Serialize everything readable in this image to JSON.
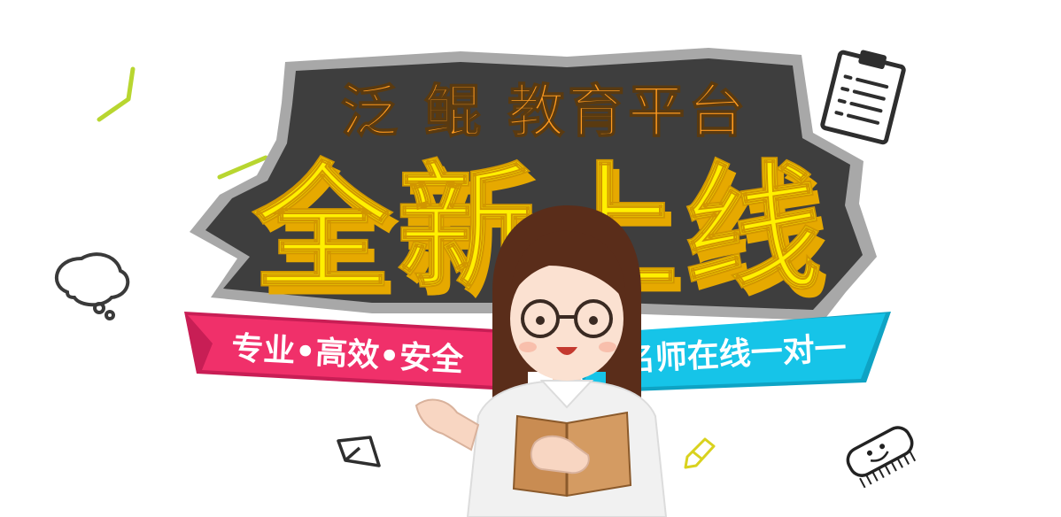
{
  "banner": {
    "platform_title": "泛 鲲 教育平台",
    "headline": "全新上线",
    "left_ribbon_text": "专业•高效•安全",
    "right_ribbon_text": "名师在线一对一"
  },
  "colors": {
    "badge_dark": "#3e3e3e",
    "badge_outline": "#a8a8a8",
    "title_orange": "#ff9a1f",
    "headline_yellow": "#fff000",
    "headline_shadow": "#e6a900",
    "ribbon_pink": "#f0306a",
    "ribbon_blue": "#16c4e8",
    "doodle_lime": "#b8d630",
    "teacher_hair": "#5a2d1a",
    "book_brown": "#c98c52"
  },
  "icons": [
    "clipboard-icon",
    "speech-bubble-icon",
    "paper-plane-icon",
    "pencil-icon",
    "scrub-brush-icon",
    "lime-stroke-doodle"
  ]
}
